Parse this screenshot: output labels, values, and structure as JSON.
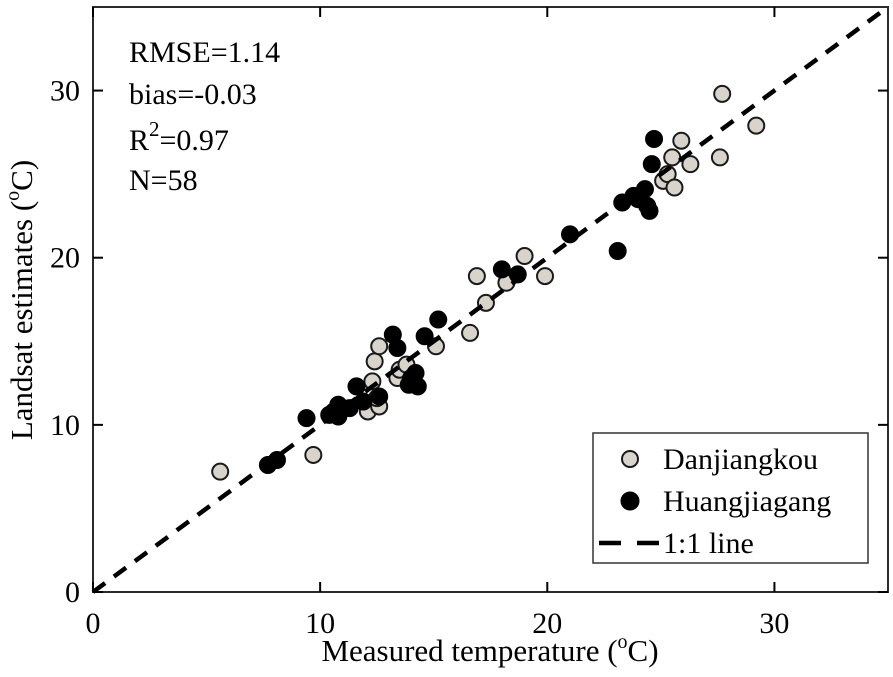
{
  "figure": {
    "background": "#ffffff",
    "border_color": "#2b2b2b",
    "tick_color": "#000000"
  },
  "stats": {
    "rmse": "RMSE=1.14",
    "bias": "bias=-0.03",
    "r2_base": "R",
    "r2_sup": "2",
    "r2_rest": "=0.97",
    "n": "N=58"
  },
  "axis": {
    "xlabel_main": "Measured temperature (",
    "xlabel_sup": "o",
    "xlabel_end": "C)",
    "ylabel_main": "Landsat estimates (",
    "ylabel_sup": "o",
    "ylabel_end": "C)"
  },
  "legend": {
    "items": [
      {
        "label": "Danjiangkou",
        "marker": "circle",
        "fill": "#d8d4cb",
        "stroke": "#1a1a1a"
      },
      {
        "label": "Huangjiagang",
        "marker": "circle",
        "fill": "#000000",
        "stroke": "#000000"
      },
      {
        "label": "1:1 line",
        "marker": "dashed-line",
        "stroke": "#000000"
      }
    ]
  },
  "chart_data": {
    "type": "scatter",
    "title": "",
    "xlabel": "Measured temperature (°C)",
    "ylabel": "Landsat estimates (°C)",
    "xlim": [
      0,
      35
    ],
    "ylim": [
      0,
      35
    ],
    "xticks": [
      0,
      10,
      20,
      30
    ],
    "yticks": [
      0,
      10,
      20,
      30
    ],
    "grid": false,
    "legend_position": "lower right",
    "annotations": [
      "RMSE=1.14",
      "bias=-0.03",
      "R2=0.97",
      "N=58"
    ],
    "reference_line": {
      "label": "1:1 line",
      "from": [
        0,
        0
      ],
      "to": [
        35,
        35
      ],
      "style": "dashed",
      "color": "#000000"
    },
    "marker_radius": 8,
    "series": [
      {
        "name": "Danjiangkou",
        "fill": "#d8d4cb",
        "stroke": "#1a1a1a",
        "points": [
          [
            5.6,
            7.2
          ],
          [
            9.7,
            8.2
          ],
          [
            12.1,
            10.8
          ],
          [
            12.6,
            11.1
          ],
          [
            12.5,
            11.6
          ],
          [
            12.3,
            12.6
          ],
          [
            12.4,
            13.8
          ],
          [
            12.6,
            14.7
          ],
          [
            13.4,
            12.8
          ],
          [
            13.5,
            13.3
          ],
          [
            13.8,
            13.6
          ],
          [
            15.1,
            14.7
          ],
          [
            16.6,
            15.5
          ],
          [
            17.3,
            17.3
          ],
          [
            16.9,
            18.9
          ],
          [
            18.2,
            18.5
          ],
          [
            19.0,
            20.1
          ],
          [
            19.9,
            18.9
          ],
          [
            25.1,
            24.6
          ],
          [
            25.3,
            25.0
          ],
          [
            25.6,
            24.2
          ],
          [
            25.5,
            26.0
          ],
          [
            25.9,
            27.0
          ],
          [
            26.3,
            25.6
          ],
          [
            27.6,
            26.0
          ],
          [
            27.7,
            29.8
          ],
          [
            29.2,
            27.9
          ]
        ]
      },
      {
        "name": "Huangjiagang",
        "fill": "#000000",
        "stroke": "#000000",
        "points": [
          [
            7.7,
            7.6
          ],
          [
            8.1,
            7.9
          ],
          [
            9.4,
            10.4
          ],
          [
            10.4,
            10.6
          ],
          [
            10.6,
            10.8
          ],
          [
            10.8,
            10.5
          ],
          [
            11.3,
            11.0
          ],
          [
            10.8,
            11.2
          ],
          [
            11.6,
            12.3
          ],
          [
            11.9,
            11.4
          ],
          [
            12.6,
            11.7
          ],
          [
            13.9,
            12.4
          ],
          [
            14.0,
            12.8
          ],
          [
            14.3,
            12.3
          ],
          [
            14.2,
            13.1
          ],
          [
            13.2,
            15.4
          ],
          [
            13.4,
            14.6
          ],
          [
            14.6,
            15.3
          ],
          [
            15.2,
            16.3
          ],
          [
            18.0,
            19.3
          ],
          [
            18.7,
            19.0
          ],
          [
            21.0,
            21.4
          ],
          [
            23.1,
            20.4
          ],
          [
            23.3,
            23.3
          ],
          [
            23.8,
            23.7
          ],
          [
            24.0,
            23.5
          ],
          [
            24.4,
            23.1
          ],
          [
            24.5,
            22.8
          ],
          [
            24.3,
            24.1
          ],
          [
            24.6,
            25.6
          ],
          [
            24.7,
            27.1
          ]
        ]
      }
    ]
  }
}
